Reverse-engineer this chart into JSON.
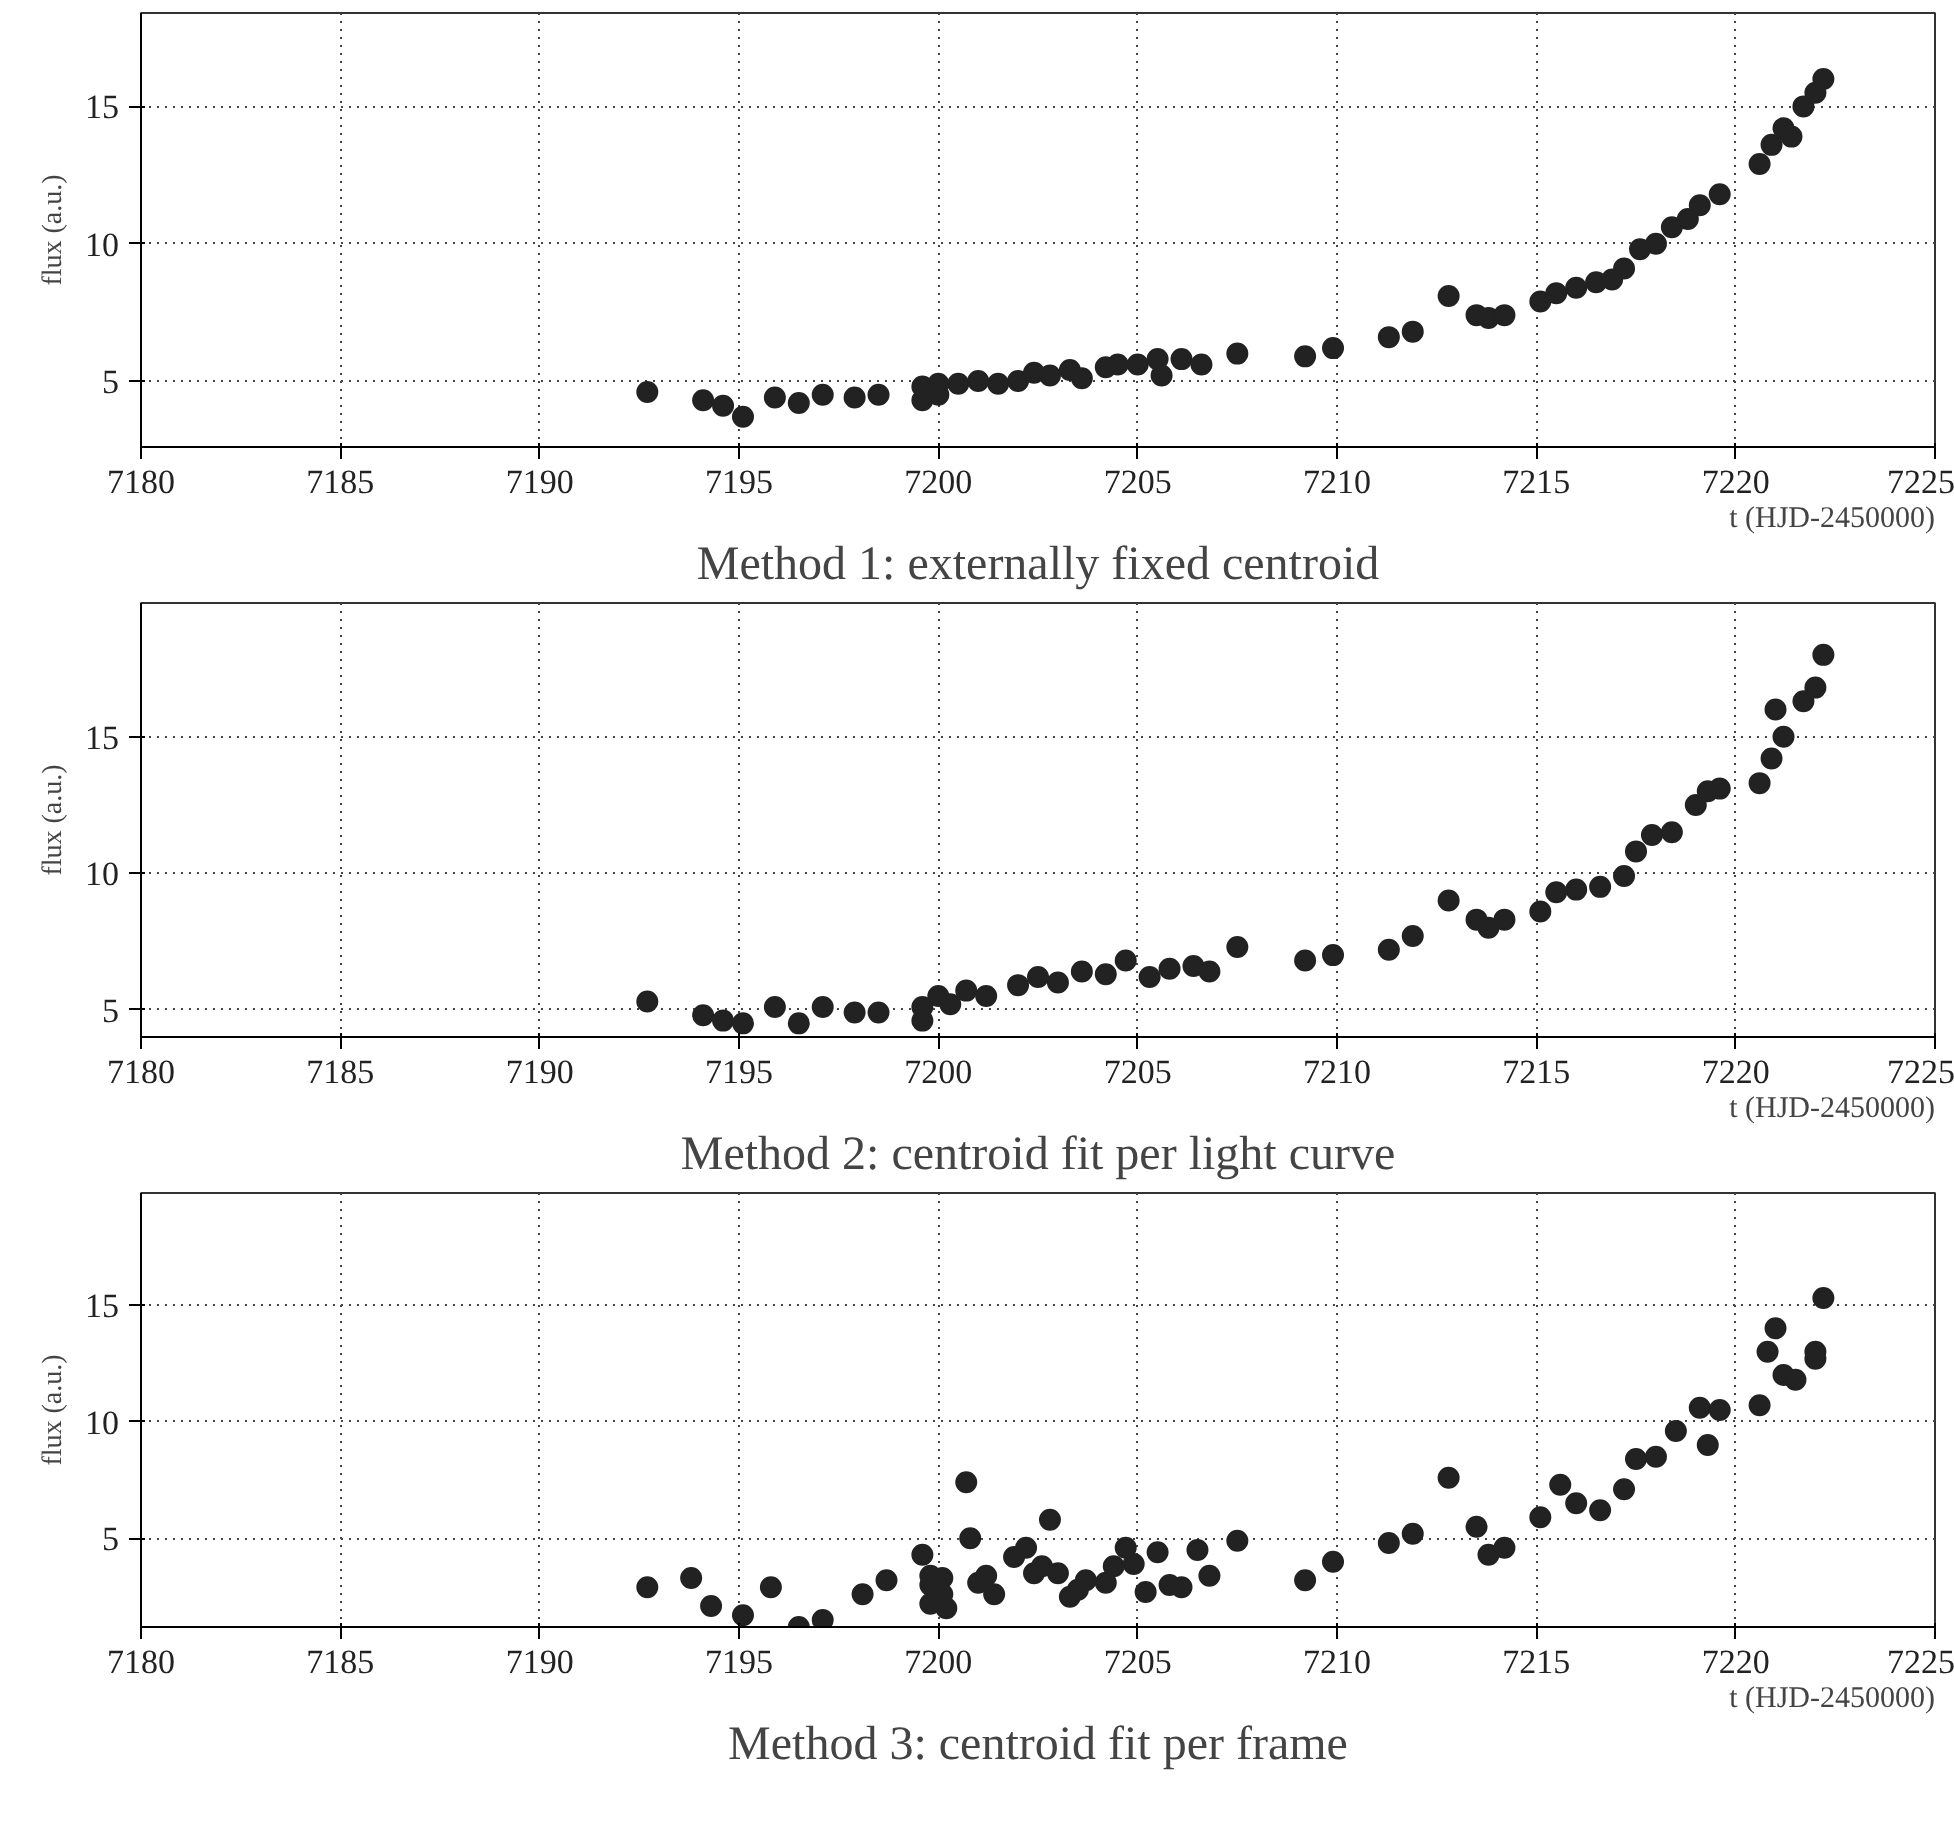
{
  "chart_data": [
    {
      "type": "scatter",
      "title": "Method 1: externally fixed centroid",
      "xlabel": "t (HJD-2450000)",
      "ylabel": "flux (a.u.)",
      "xlim": [
        7180,
        7225
      ],
      "ylim": [
        2.6,
        18.4
      ],
      "xticks": [
        7180,
        7185,
        7190,
        7195,
        7200,
        7205,
        7210,
        7215,
        7220,
        7225
      ],
      "yticks": [
        5,
        10,
        15
      ],
      "grid": true,
      "marker": "circle",
      "series": [
        {
          "color": "#222222",
          "x": [
            7192.7,
            7194.1,
            7194.6,
            7195.1,
            7195.9,
            7196.5,
            7197.1,
            7197.9,
            7198.5,
            7199.6,
            7199.6,
            7200.0,
            7200.0,
            7200.5,
            7201.0,
            7201.5,
            7202.0,
            7202.4,
            7202.8,
            7203.3,
            7203.6,
            7204.2,
            7204.5,
            7205.0,
            7205.5,
            7205.6,
            7206.1,
            7206.6,
            7207.5,
            7209.2,
            7209.9,
            7211.3,
            7211.9,
            7212.8,
            7213.5,
            7213.8,
            7214.2,
            7215.1,
            7215.5,
            7216.0,
            7216.5,
            7216.9,
            7217.2,
            7217.6,
            7218.0,
            7218.4,
            7218.8,
            7219.1,
            7219.6,
            7220.6,
            7220.9,
            7221.2,
            7221.4,
            7221.7,
            7222.0,
            7222.2
          ],
          "values": [
            4.6,
            4.3,
            4.1,
            3.7,
            4.4,
            4.2,
            4.5,
            4.4,
            4.5,
            4.3,
            4.8,
            4.5,
            4.9,
            4.9,
            5.0,
            4.9,
            5.0,
            5.3,
            5.2,
            5.4,
            5.1,
            5.5,
            5.6,
            5.6,
            5.8,
            5.2,
            5.8,
            5.6,
            6.0,
            5.9,
            6.2,
            6.6,
            6.8,
            8.1,
            7.4,
            7.3,
            7.4,
            7.9,
            8.2,
            8.4,
            8.6,
            8.7,
            9.1,
            9.8,
            10.0,
            10.6,
            10.9,
            11.4,
            11.8,
            12.9,
            13.6,
            14.2,
            13.9,
            15.0,
            15.5,
            16.0
          ]
        }
      ]
    },
    {
      "type": "scatter",
      "title": "Method 2: centroid fit per light curve",
      "xlabel": "t (HJD-2450000)",
      "ylabel": "flux (a.u.)",
      "xlim": [
        7180,
        7225
      ],
      "ylim": [
        4.0,
        19.9
      ],
      "xticks": [
        7180,
        7185,
        7190,
        7195,
        7200,
        7205,
        7210,
        7215,
        7220,
        7225
      ],
      "yticks": [
        5,
        10,
        15
      ],
      "grid": true,
      "marker": "circle",
      "series": [
        {
          "color": "#222222",
          "x": [
            7192.7,
            7194.1,
            7194.6,
            7195.1,
            7195.9,
            7196.5,
            7197.1,
            7197.9,
            7198.5,
            7199.6,
            7199.6,
            7200.3,
            7200.0,
            7200.7,
            7201.2,
            7202.0,
            7202.5,
            7203.0,
            7203.6,
            7204.2,
            7204.7,
            7205.3,
            7205.8,
            7206.4,
            7206.8,
            7207.5,
            7209.2,
            7209.9,
            7211.3,
            7211.9,
            7212.8,
            7213.5,
            7213.8,
            7214.2,
            7215.1,
            7215.5,
            7216.0,
            7216.6,
            7217.2,
            7217.5,
            7217.9,
            7218.4,
            7219.0,
            7219.3,
            7219.6,
            7220.6,
            7220.9,
            7221.2,
            7221.0,
            7221.7,
            7222.0,
            7222.2
          ],
          "values": [
            5.3,
            4.8,
            4.6,
            4.5,
            5.1,
            4.5,
            5.1,
            4.9,
            4.9,
            4.6,
            5.1,
            5.2,
            5.5,
            5.7,
            5.5,
            5.9,
            6.2,
            6.0,
            6.4,
            6.3,
            6.8,
            6.2,
            6.5,
            6.6,
            6.4,
            7.3,
            6.8,
            7.0,
            7.2,
            7.7,
            9.0,
            8.3,
            8.0,
            8.3,
            8.6,
            9.3,
            9.4,
            9.5,
            9.9,
            10.8,
            11.4,
            11.5,
            12.5,
            13.0,
            13.1,
            13.3,
            14.2,
            15.0,
            16.0,
            16.3,
            16.8,
            18.0
          ]
        }
      ]
    },
    {
      "type": "scatter",
      "title": "Method 3: centroid fit per frame",
      "xlabel": "t (HJD-2450000)",
      "ylabel": "flux (a.u.)",
      "xlim": [
        7180,
        7225
      ],
      "ylim": [
        1.2,
        19.8
      ],
      "xticks": [
        7180,
        7185,
        7190,
        7195,
        7200,
        7205,
        7210,
        7215,
        7220,
        7225
      ],
      "yticks": [
        5,
        10,
        15
      ],
      "grid": true,
      "marker": "circle",
      "series": [
        {
          "color": "#222222",
          "x": [
            7192.7,
            7193.8,
            7194.3,
            7195.1,
            7195.8,
            7196.5,
            7197.1,
            7198.1,
            7198.7,
            7199.6,
            7199.8,
            7199.8,
            7199.8,
            7200.1,
            7200.1,
            7200.2,
            7200.7,
            7200.8,
            7201.0,
            7201.2,
            7201.4,
            7201.9,
            7202.2,
            7202.4,
            7202.6,
            7202.8,
            7203.0,
            7203.3,
            7203.5,
            7203.7,
            7204.2,
            7204.4,
            7204.7,
            7204.9,
            7205.2,
            7205.5,
            7205.8,
            7206.1,
            7206.5,
            7206.8,
            7207.5,
            7209.2,
            7209.9,
            7211.3,
            7211.9,
            7212.8,
            7213.5,
            7213.8,
            7214.2,
            7215.1,
            7215.6,
            7216.0,
            7216.6,
            7217.2,
            7217.5,
            7218.0,
            7218.5,
            7219.1,
            7219.3,
            7219.6,
            7220.6,
            7220.8,
            7221.0,
            7221.2,
            7221.5,
            7222.0,
            7222.0,
            7222.2
          ],
          "values": [
            2.9,
            3.3,
            2.1,
            1.7,
            2.9,
            1.2,
            1.5,
            2.6,
            3.2,
            4.3,
            3.0,
            2.2,
            3.4,
            2.6,
            3.3,
            2.0,
            7.4,
            5.0,
            3.1,
            3.4,
            2.6,
            4.2,
            4.6,
            3.5,
            3.8,
            5.8,
            3.5,
            2.5,
            2.8,
            3.2,
            3.1,
            3.8,
            4.6,
            3.9,
            2.7,
            4.4,
            3.0,
            2.9,
            4.5,
            3.4,
            4.9,
            3.2,
            4.0,
            4.8,
            5.2,
            7.6,
            5.5,
            4.3,
            4.6,
            5.9,
            7.3,
            6.5,
            6.2,
            7.1,
            8.4,
            8.5,
            9.6,
            10.6,
            9.0,
            10.5,
            10.7,
            13.0,
            14.0,
            12.0,
            11.8,
            12.7,
            13.0,
            15.3
          ]
        }
      ]
    }
  ]
}
